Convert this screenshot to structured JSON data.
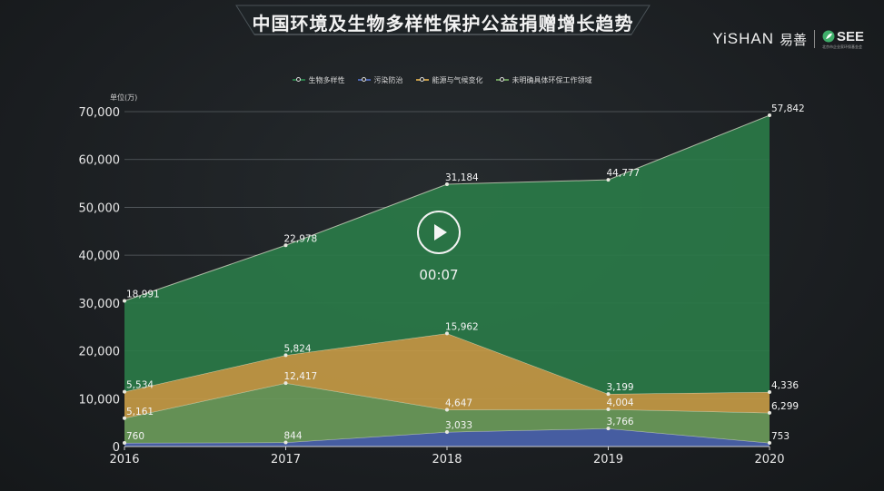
{
  "title": "中国环境及生物多样性保护公益捐赠增长趋势",
  "brand": {
    "yishan": "YiSHAN",
    "yishan_cn": "易善",
    "see": "SEE",
    "see_sub": "北京市企业家环保基金会"
  },
  "player": {
    "time": "00:07",
    "icon": "play-icon"
  },
  "chart_data": {
    "type": "area",
    "stacked": true,
    "unit_label": "单位(万)",
    "x": [
      "2016",
      "2017",
      "2018",
      "2019",
      "2020"
    ],
    "yticks": [
      "0",
      "10,000",
      "20,000",
      "30,000",
      "40,000",
      "50,000",
      "60,000",
      "70,000"
    ],
    "ylim": [
      0,
      70000
    ],
    "grid": true,
    "legend_position": "top-center",
    "series": [
      {
        "name": "污染防治",
        "color": "#4a63ad",
        "values": [
          760,
          844,
          3033,
          3766,
          753
        ],
        "labels": [
          "760",
          "844",
          "3,033",
          "3,766",
          "753"
        ]
      },
      {
        "name": "未明确具体环保工作领域",
        "color": "#6a9a5a",
        "values": [
          5161,
          12417,
          4647,
          4004,
          6299
        ],
        "labels": [
          "5,161",
          "12,417",
          "4,647",
          "4,004",
          "6,299"
        ]
      },
      {
        "name": "能源与气候变化",
        "color": "#c49a45",
        "values": [
          5534,
          5824,
          15962,
          3199,
          4336
        ],
        "labels": [
          "5,534",
          "5,824",
          "15,962",
          "3,199",
          "4,336"
        ]
      },
      {
        "name": "生物多样性",
        "color": "#2a7a48",
        "values": [
          18991,
          22978,
          31184,
          44777,
          57842
        ],
        "labels": [
          "18,991",
          "22,978",
          "31,184",
          "44,777",
          "57,842"
        ]
      }
    ],
    "legend_order": [
      "生物多样性",
      "污染防治",
      "能源与气候变化",
      "未明确具体环保工作领域"
    ]
  }
}
